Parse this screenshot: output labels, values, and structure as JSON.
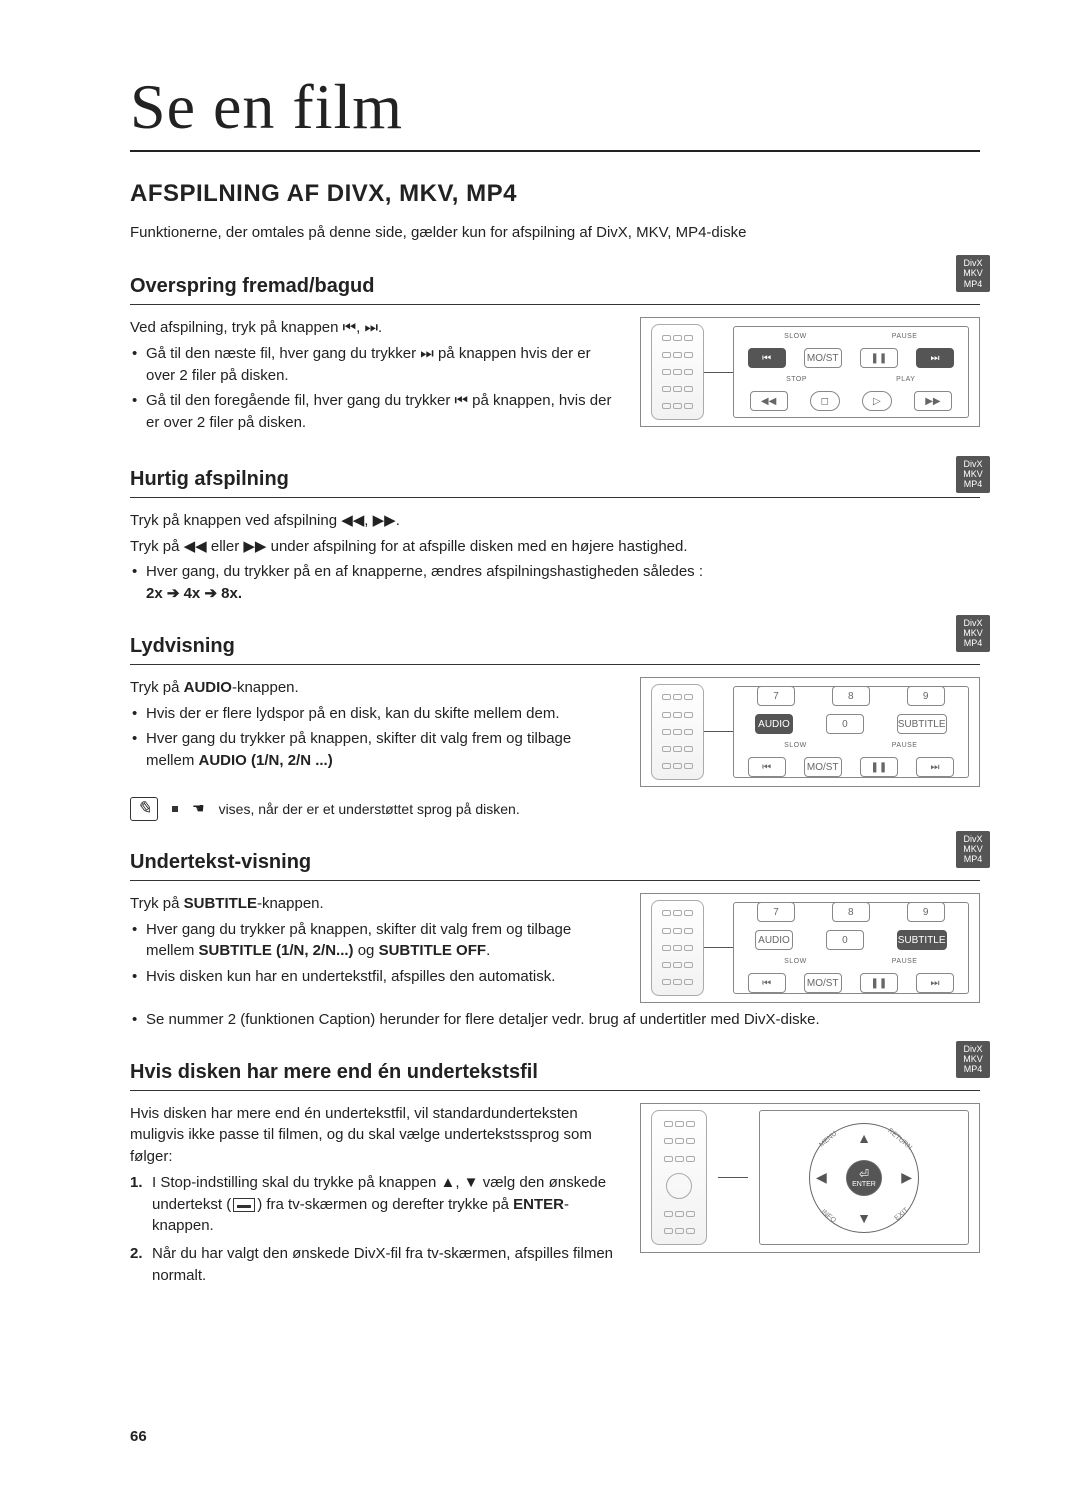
{
  "page": {
    "title": "Se en film",
    "section_title": "AFSPILNING AF DIVX, MKV, MP4",
    "intro": "Funktionerne, der omtales på denne side, gælder kun for afspilning af DivX, MKV, MP4-diske",
    "page_number": "66"
  },
  "format_badge": "DivX\nMKV\nMP4",
  "colors": {
    "text": "#222222",
    "rule": "#333333",
    "badge_bg": "#555555",
    "badge_fg": "#ffffff"
  },
  "s1": {
    "heading": "Overspring fremad/bagud",
    "p1": "Ved afspilning, tryk på knappen ⏮, ⏭.",
    "b1": "Gå til den næste fil, hver gang du trykker ⏭ på knappen hvis der er over 2 filer på disken.",
    "b2": "Gå til den foregående fil, hver gang du trykker ⏮ på knappen, hvis der er over 2 filer på disken.",
    "panel": {
      "labels_top": [
        "SLOW",
        "PAUSE"
      ],
      "row1": [
        "⏮",
        "MO/ST",
        "❚❚",
        "⏭"
      ],
      "labels_mid": [
        "STOP",
        "PLAY"
      ],
      "row2": [
        "◀◀",
        "◻",
        "▷",
        "▶▶"
      ]
    }
  },
  "s2": {
    "heading": "Hurtig afspilning",
    "p1": "Tryk på knappen ved afspilning ◀◀, ▶▶.",
    "p2": "Tryk på ◀◀ eller ▶▶ under afspilning for at afspille disken med en højere hastighed.",
    "b1": "Hver gang, du trykker på en af knapperne, ændres afspilningshastigheden således :",
    "speed": "2x ➔ 4x ➔ 8x."
  },
  "s3": {
    "heading": "Lydvisning",
    "p1_pre": "Tryk på ",
    "p1_bold": "AUDIO",
    "p1_post": "-knappen.",
    "b1": "Hvis der er flere lydspor på en disk, kan du skifte mellem dem.",
    "b2_pre": "Hver gang du trykker på knappen, skifter dit valg frem og tilbage mellem ",
    "b2_bold": "AUDIO (1/N, 2/N ...)",
    "panel": {
      "row_top": [
        "7",
        "8",
        "9"
      ],
      "row_mid": [
        "AUDIO",
        "0",
        "SUBTITLE"
      ],
      "labels": [
        "SLOW",
        "PAUSE"
      ],
      "row_bot": [
        "⏮",
        "MO/ST",
        "❚❚",
        "⏭"
      ],
      "highlight": "AUDIO"
    },
    "note": "vises, når der er et understøttet sprog på disken."
  },
  "s4": {
    "heading": "Undertekst-visning",
    "p1_pre": "Tryk på ",
    "p1_bold": "SUBTITLE",
    "p1_post": "-knappen.",
    "b1_pre": "Hver gang du trykker på knappen, skifter dit valg frem og tilbage mellem ",
    "b1_bold1": "SUBTITLE (1/N, 2/N...)",
    "b1_mid": " og ",
    "b1_bold2": "SUBTITLE OFF",
    "b2": "Hvis disken kun har en undertekstfil, afspilles den automatisk.",
    "b3": "Se nummer 2 (funktionen Caption) herunder for flere detaljer vedr. brug af undertitler med DivX-diske.",
    "panel": {
      "row_top": [
        "7",
        "8",
        "9"
      ],
      "row_mid": [
        "AUDIO",
        "0",
        "SUBTITLE"
      ],
      "labels": [
        "SLOW",
        "PAUSE"
      ],
      "row_bot": [
        "⏮",
        "MO/ST",
        "❚❚",
        "⏭"
      ],
      "highlight": "SUBTITLE"
    }
  },
  "s5": {
    "heading": "Hvis disken har mere end én undertekstsfil",
    "p1": "Hvis disken har mere end én undertekstfil, vil standardunderteksten muligvis ikke passe til filmen, og du skal vælge undertekstssprog som følger:",
    "step1_pre": "I Stop-indstilling skal du trykke på knappen ▲, ▼ vælg den ønskede undertekst (",
    "step1_post": ") fra tv-skærmen og derefter trykke på ",
    "step1_bold": "ENTER",
    "step1_end": "-knappen.",
    "step2": "Når du har valgt den ønskede DivX-fil fra tv-skærmen, afspilles filmen normalt.",
    "nav": {
      "center": "ENTER",
      "corners": [
        "MENU",
        "RETURN",
        "INFO",
        "EXIT"
      ]
    }
  }
}
